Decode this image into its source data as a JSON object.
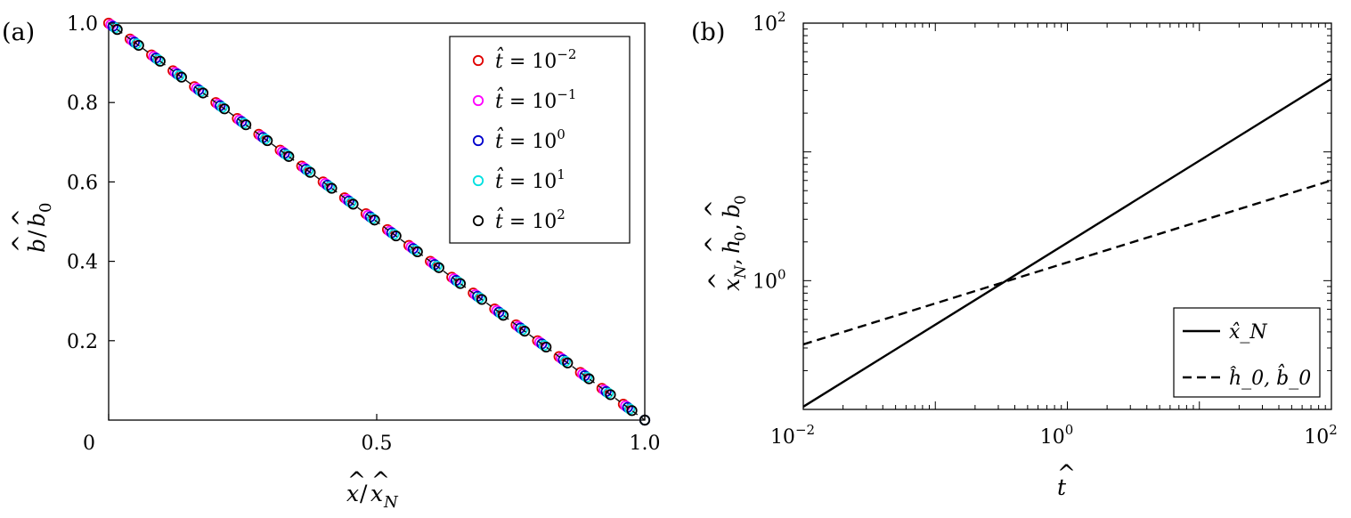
{
  "chart_data": [
    {
      "type": "scatter",
      "panel_label": "(a)",
      "xlabel": "x̂/x̂_N",
      "ylabel": "b̂/b̂_0",
      "xlim": [
        0,
        1.0
      ],
      "ylim": [
        0,
        1.0
      ],
      "x_ticks": [
        "0",
        "0.5",
        "1.0"
      ],
      "y_ticks": [
        "0.2",
        "0.4",
        "0.6",
        "0.8",
        "1.0"
      ],
      "legend_position": "top-right",
      "series": [
        {
          "name": "t̂ = 10^−2",
          "label_base": "t̂ = 10",
          "label_exp": "−2",
          "color": "#e00000",
          "offset": 0.0
        },
        {
          "name": "t̂ = 10^−1",
          "label_base": "t̂ = 10",
          "label_exp": "−1",
          "color": "#ff00ff",
          "offset": 0.004
        },
        {
          "name": "t̂ = 10^0",
          "label_base": "t̂ = 10",
          "label_exp": "0",
          "color": "#0000cc",
          "offset": 0.008
        },
        {
          "name": "t̂ = 10^1",
          "label_base": "t̂ = 10",
          "label_exp": "1",
          "color": "#00e0e0",
          "offset": 0.012
        },
        {
          "name": "t̂ = 10^2",
          "label_base": "t̂ = 10",
          "label_exp": "2",
          "color": "#000000",
          "offset": 0.016
        }
      ],
      "x_points": [
        0.0,
        0.04,
        0.08,
        0.12,
        0.16,
        0.2,
        0.24,
        0.28,
        0.32,
        0.36,
        0.4,
        0.44,
        0.48,
        0.52,
        0.56,
        0.6,
        0.64,
        0.68,
        0.72,
        0.76,
        0.8,
        0.84,
        0.88,
        0.92,
        0.96,
        1.0
      ],
      "y_relation": "b/b0 = 1 - x/xN"
    },
    {
      "type": "line",
      "panel_label": "(b)",
      "xlabel": "t̂",
      "ylabel": "x̂_N, ĥ_0, b̂_0",
      "xscale": "log",
      "yscale": "log",
      "xlim": [
        0.01,
        100
      ],
      "ylim": [
        0.1,
        100
      ],
      "x_ticks": [
        {
          "base": "10",
          "exp": "−2"
        },
        {
          "base": "10",
          "exp": "0"
        },
        {
          "base": "10",
          "exp": "2"
        }
      ],
      "y_ticks": [
        {
          "base": "10",
          "exp": "0"
        },
        {
          "base": "10",
          "exp": "2"
        }
      ],
      "legend_position": "bottom-right",
      "series": [
        {
          "name": "x̂_N",
          "style": "solid",
          "x": [
            0.01,
            100
          ],
          "y": [
            0.105,
            37
          ]
        },
        {
          "name": "ĥ_0, b̂_0",
          "style": "dashed",
          "x": [
            0.01,
            100
          ],
          "y": [
            0.32,
            6.0
          ]
        }
      ]
    }
  ]
}
